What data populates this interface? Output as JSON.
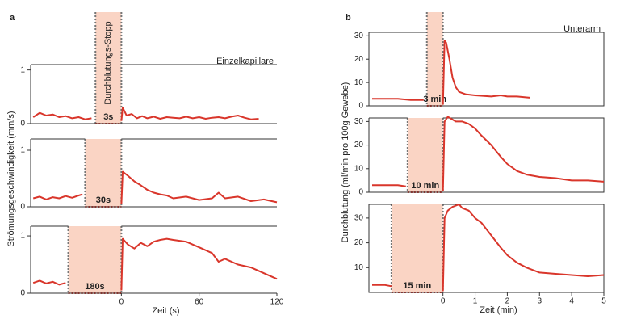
{
  "chart_data": [
    {
      "type": "line",
      "panel_label": "a",
      "title": "Einzelkapillare",
      "annotation": "Durchblutungs-Stopp",
      "xlim": [
        -70,
        120
      ],
      "ylim": [
        0,
        1.1
      ],
      "yticks": [
        0,
        1
      ],
      "occlusion": {
        "range": [
          -20,
          0
        ],
        "label": "3s"
      },
      "series": [
        {
          "color": "#d9362b",
          "x": [
            -68,
            -63,
            -58,
            -53,
            -48,
            -43,
            -38,
            -33,
            -28,
            -23,
            -10,
            0,
            1,
            4,
            8,
            12,
            16,
            20,
            25,
            30,
            35,
            40,
            45,
            50,
            55,
            60,
            65,
            70,
            75,
            80,
            85,
            90,
            95,
            100,
            106
          ],
          "values": [
            0.12,
            0.2,
            0.15,
            0.17,
            0.12,
            0.14,
            0.1,
            0.12,
            0.08,
            0.1,
            null,
            0.05,
            0.3,
            0.15,
            0.18,
            0.1,
            0.14,
            0.1,
            0.13,
            0.09,
            0.12,
            0.11,
            0.1,
            0.13,
            0.1,
            0.12,
            0.09,
            0.11,
            0.12,
            0.1,
            0.13,
            0.15,
            0.11,
            0.08,
            0.09
          ]
        }
      ]
    },
    {
      "type": "line",
      "ylabel": "Strömungsgeschwindigkeit (mm/s)",
      "xlim": [
        -70,
        120
      ],
      "ylim": [
        0,
        1.2
      ],
      "yticks": [
        0,
        1
      ],
      "occlusion": {
        "range": [
          -28,
          0
        ],
        "label": "30s"
      },
      "series": [
        {
          "color": "#d9362b",
          "x": [
            -68,
            -63,
            -58,
            -53,
            -48,
            -43,
            -38,
            -33,
            -30,
            -15,
            0,
            1,
            5,
            10,
            15,
            20,
            25,
            30,
            35,
            40,
            50,
            60,
            70,
            75,
            80,
            90,
            100,
            110,
            120
          ],
          "values": [
            0.15,
            0.18,
            0.13,
            0.17,
            0.15,
            0.19,
            0.16,
            0.2,
            0.22,
            null,
            0.05,
            0.62,
            0.55,
            0.45,
            0.38,
            0.3,
            0.25,
            0.22,
            0.2,
            0.15,
            0.18,
            0.12,
            0.15,
            0.25,
            0.15,
            0.18,
            0.1,
            0.13,
            0.08
          ]
        }
      ]
    },
    {
      "type": "line",
      "xlabel": "Zeit (s)",
      "xlim": [
        -70,
        120
      ],
      "xticks": [
        0,
        60,
        120
      ],
      "ylim": [
        0,
        1.17
      ],
      "yticks": [
        0,
        1
      ],
      "occlusion": {
        "range": [
          -41,
          0
        ],
        "label": "180s"
      },
      "series": [
        {
          "color": "#d9362b",
          "x": [
            -68,
            -63,
            -58,
            -53,
            -48,
            -43,
            -20,
            0,
            1,
            5,
            10,
            15,
            20,
            25,
            30,
            35,
            40,
            50,
            60,
            70,
            75,
            80,
            90,
            100,
            110,
            120
          ],
          "values": [
            0.18,
            0.22,
            0.17,
            0.2,
            0.15,
            0.18,
            null,
            0.05,
            0.95,
            0.85,
            0.78,
            0.88,
            0.82,
            0.9,
            0.93,
            0.95,
            0.93,
            0.9,
            0.8,
            0.7,
            0.55,
            0.6,
            0.5,
            0.45,
            0.35,
            0.25
          ]
        }
      ]
    },
    {
      "type": "line",
      "panel_label": "b",
      "title": "Unterarm",
      "xlim": [
        -2.3,
        5
      ],
      "ylim": [
        0,
        31.5
      ],
      "yticks": [
        0,
        10,
        20,
        30
      ],
      "occlusion": {
        "range": [
          -0.5,
          0
        ],
        "label": "3 min"
      },
      "series": [
        {
          "color": "#d9362b",
          "x": [
            -2.2,
            -1.8,
            -1.4,
            -1,
            -0.6,
            -0.3,
            0,
            0.05,
            0.1,
            0.2,
            0.3,
            0.4,
            0.5,
            0.7,
            1,
            1.5,
            1.8,
            2,
            2.3,
            2.7
          ],
          "values": [
            3,
            3,
            3,
            2.5,
            2.5,
            null,
            0.5,
            28,
            27,
            20,
            12,
            8,
            6,
            5,
            4.5,
            4,
            4.5,
            4,
            4,
            3.5
          ]
        }
      ]
    },
    {
      "type": "line",
      "ylabel": "Durchblutung (ml/min pro 100g Gewebe)",
      "xlim": [
        -2.3,
        5
      ],
      "ylim": [
        0,
        31.5
      ],
      "yticks": [
        0,
        10,
        20,
        30
      ],
      "occlusion": {
        "range": [
          -1.1,
          0
        ],
        "label": "10 min"
      },
      "series": [
        {
          "color": "#d9362b",
          "x": [
            -2.2,
            -1.8,
            -1.4,
            -1.15,
            -0.6,
            0,
            0.05,
            0.15,
            0.4,
            0.6,
            0.8,
            1,
            1.2,
            1.5,
            1.8,
            2,
            2.3,
            2.6,
            3,
            3.5,
            4,
            4.5,
            5
          ],
          "values": [
            3,
            3,
            3,
            2.5,
            null,
            0.5,
            30,
            32,
            30,
            30,
            29,
            27,
            24,
            20,
            15,
            12,
            9,
            7.5,
            6.5,
            6,
            5,
            5,
            4.5
          ]
        }
      ]
    },
    {
      "type": "line",
      "xlabel": "Zeit (min)",
      "xlim": [
        -2.3,
        5
      ],
      "xticks": [
        0,
        1,
        2,
        3,
        4,
        5
      ],
      "ylim": [
        0,
        35.5
      ],
      "yticks": [
        10,
        20,
        30
      ],
      "occlusion": {
        "range": [
          -1.6,
          0
        ],
        "label": "15 min"
      },
      "series": [
        {
          "color": "#d9362b",
          "x": [
            -2.2,
            -2,
            -1.8,
            -1.6,
            -0.8,
            0,
            0.05,
            0.15,
            0.3,
            0.5,
            0.6,
            0.8,
            1,
            1.2,
            1.5,
            1.8,
            2,
            2.3,
            2.6,
            3,
            3.5,
            4,
            4.5,
            5
          ],
          "values": [
            3,
            3,
            3,
            2.5,
            null,
            0.5,
            30,
            33,
            34.5,
            35.5,
            34,
            33,
            30,
            28,
            23,
            18,
            15,
            12,
            10,
            8,
            7.5,
            7,
            6.5,
            7
          ]
        }
      ]
    }
  ]
}
